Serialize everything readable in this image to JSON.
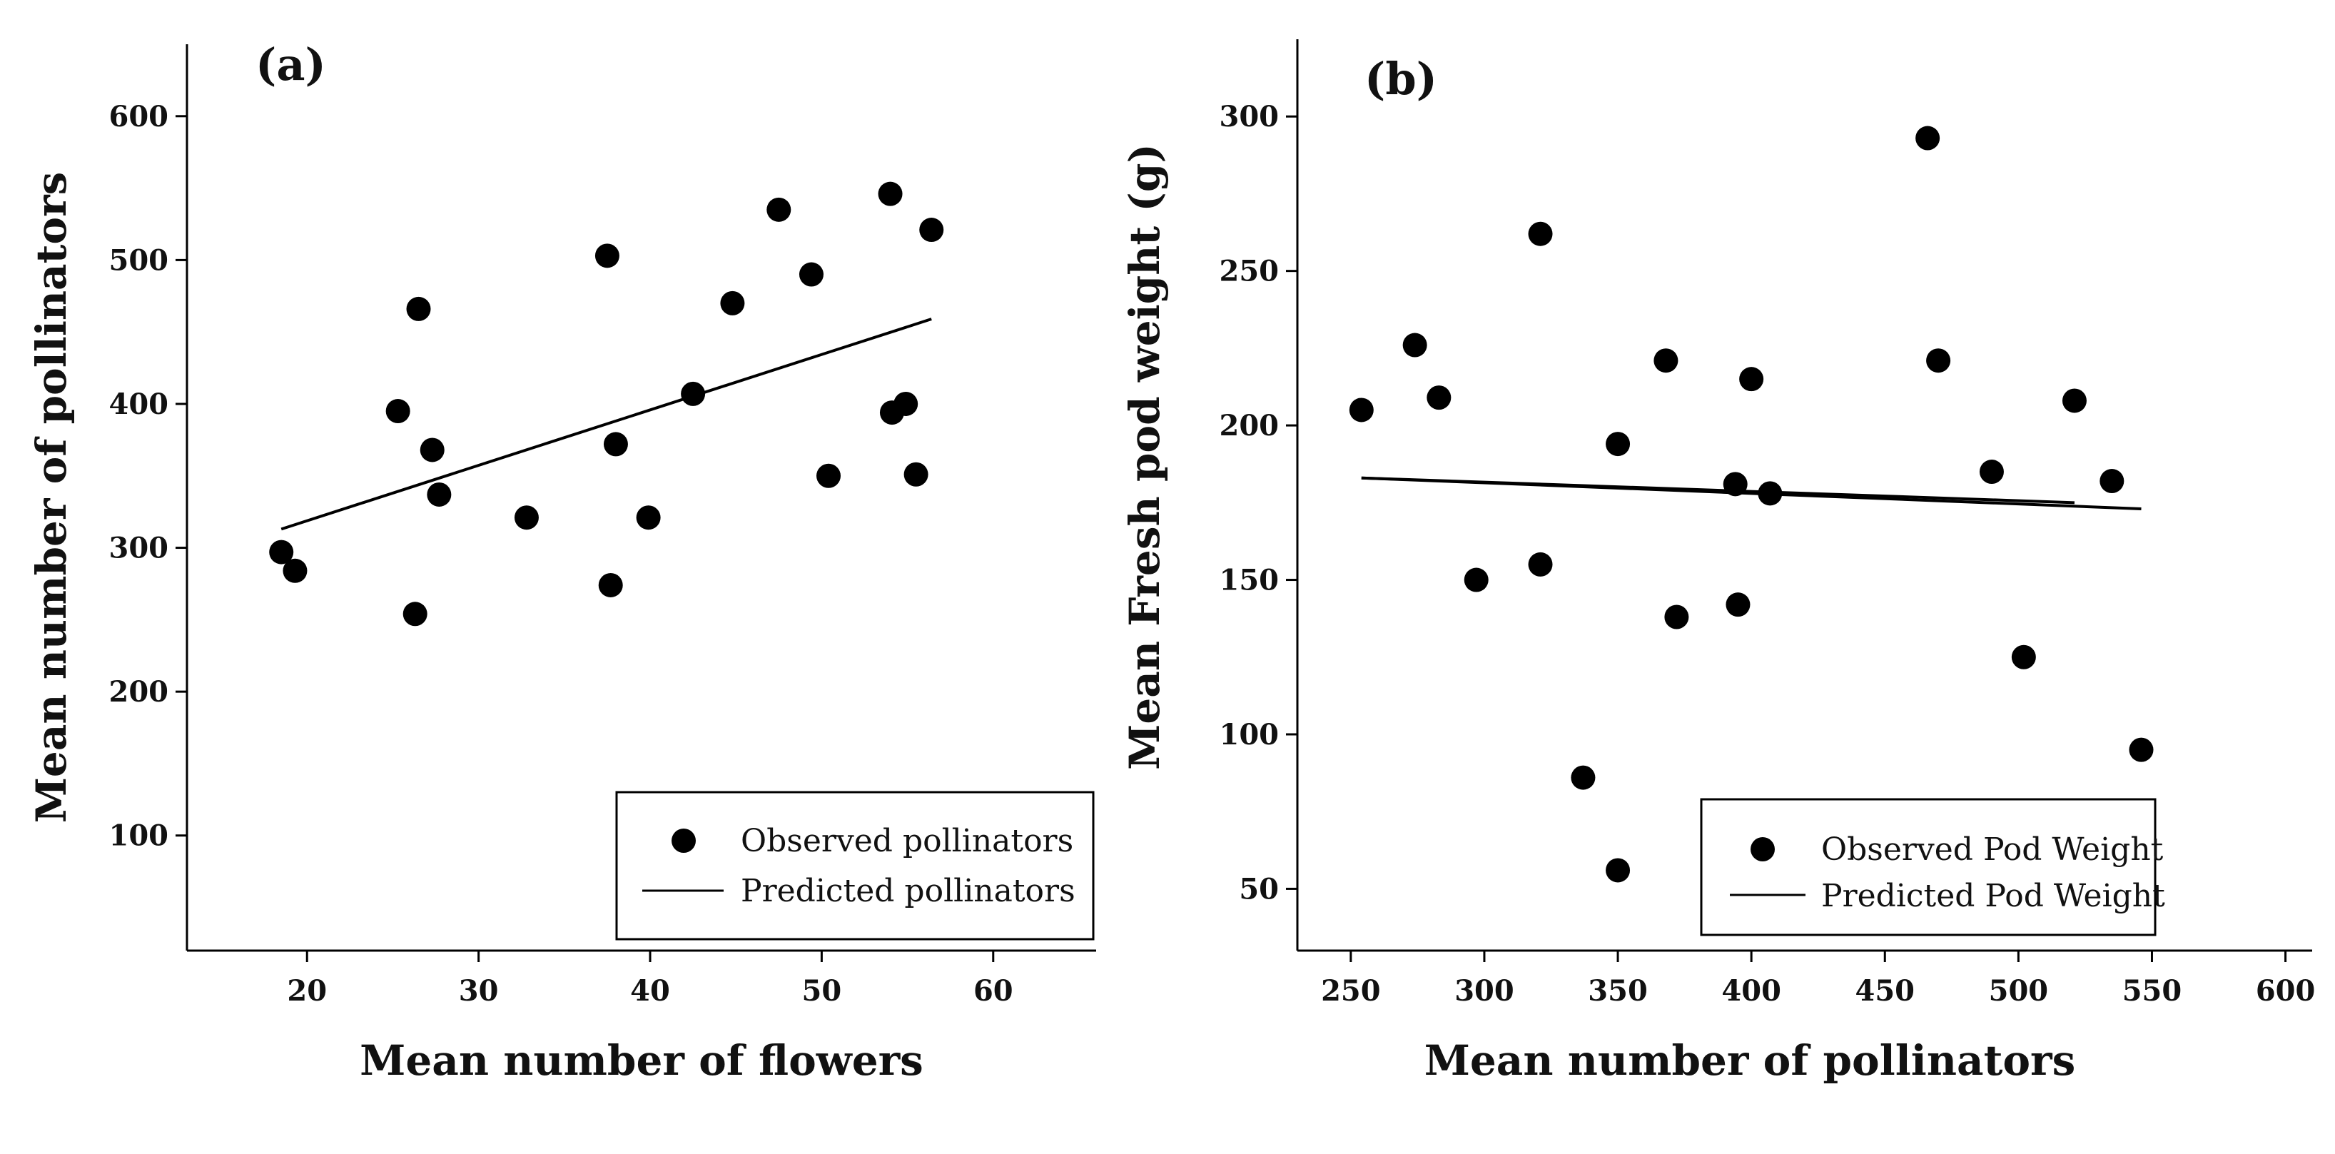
{
  "figure": {
    "colors": {
      "marker": "#000000",
      "line": "#000000",
      "background": "#ffffff"
    }
  },
  "chart_data": [
    {
      "type": "scatter",
      "panel_label": "(a)",
      "xlabel": "Mean number of flowers",
      "ylabel": "Mean number of pollinators",
      "xlim": [
        13,
        66
      ],
      "ylim": [
        20,
        650
      ],
      "xticks": [
        20,
        30,
        40,
        50,
        60
      ],
      "yticks": [
        100,
        200,
        300,
        400,
        500,
        600
      ],
      "legend_position": "bottom-right",
      "series": [
        {
          "name": "Observed pollinators",
          "kind": "points",
          "points": [
            [
              18.5,
              297
            ],
            [
              19.3,
              284
            ],
            [
              25.3,
              395
            ],
            [
              26.3,
              254
            ],
            [
              26.5,
              466
            ],
            [
              27.3,
              368
            ],
            [
              27.7,
              337
            ],
            [
              32.8,
              321
            ],
            [
              37.5,
              503
            ],
            [
              37.7,
              274
            ],
            [
              38.0,
              372
            ],
            [
              39.9,
              321
            ],
            [
              42.5,
              407
            ],
            [
              44.8,
              470
            ],
            [
              47.5,
              535
            ],
            [
              49.4,
              490
            ],
            [
              50.4,
              350
            ],
            [
              54.0,
              546
            ],
            [
              54.1,
              394
            ],
            [
              54.9,
              400
            ],
            [
              55.5,
              351
            ],
            [
              56.4,
              521
            ]
          ]
        },
        {
          "name": "Predicted pollinators",
          "kind": "line",
          "points": [
            [
              18.5,
              313
            ],
            [
              56.4,
              459
            ]
          ]
        }
      ]
    },
    {
      "type": "scatter",
      "panel_label": "(b)",
      "xlabel": "Mean number of pollinators",
      "ylabel": "Mean Fresh pod weight (g)",
      "xlim": [
        230,
        610
      ],
      "ylim": [
        30,
        325
      ],
      "xticks": [
        250,
        300,
        350,
        400,
        450,
        500,
        550,
        600
      ],
      "yticks": [
        50,
        100,
        150,
        200,
        250,
        300
      ],
      "legend_position": "bottom-right",
      "series": [
        {
          "name": "Observed Pod Weight",
          "kind": "points",
          "points": [
            [
              254,
              205
            ],
            [
              274,
              226
            ],
            [
              283,
              209
            ],
            [
              297,
              150
            ],
            [
              321,
              155
            ],
            [
              321,
              262
            ],
            [
              337,
              86
            ],
            [
              350,
              56
            ],
            [
              350,
              194
            ],
            [
              368,
              221
            ],
            [
              372,
              138
            ],
            [
              394,
              181
            ],
            [
              395,
              142
            ],
            [
              400,
              215
            ],
            [
              407,
              178
            ],
            [
              466,
              293
            ],
            [
              470,
              221
            ],
            [
              490,
              185
            ],
            [
              502,
              125
            ],
            [
              521,
              208
            ],
            [
              535,
              182
            ],
            [
              546,
              95
            ]
          ]
        },
        {
          "name": "Predicted Pod Weight",
          "kind": "line",
          "points": [
            [
              254,
              183
            ],
            [
              546,
              173
            ]
          ]
        },
        {
          "name": "Predicted Pod Weight",
          "kind": "line",
          "points": [
            [
              254,
              183
            ],
            [
              521,
              175
            ]
          ]
        }
      ]
    }
  ]
}
